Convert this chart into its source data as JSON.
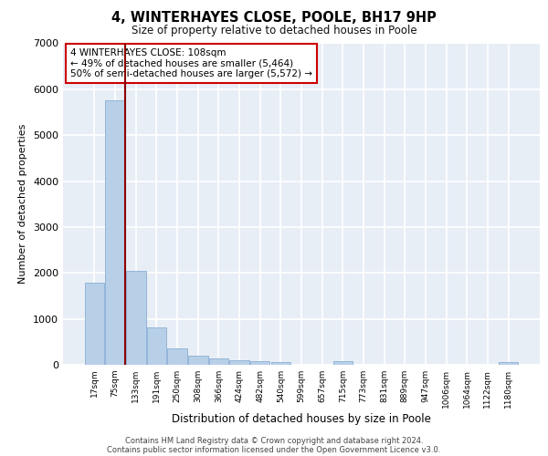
{
  "title1": "4, WINTERHAYES CLOSE, POOLE, BH17 9HP",
  "title2": "Size of property relative to detached houses in Poole",
  "xlabel": "Distribution of detached houses by size in Poole",
  "ylabel": "Number of detached properties",
  "categories": [
    "17sqm",
    "75sqm",
    "133sqm",
    "191sqm",
    "250sqm",
    "308sqm",
    "366sqm",
    "424sqm",
    "482sqm",
    "540sqm",
    "599sqm",
    "657sqm",
    "715sqm",
    "773sqm",
    "831sqm",
    "889sqm",
    "947sqm",
    "1006sqm",
    "1064sqm",
    "1122sqm",
    "1180sqm"
  ],
  "values": [
    1780,
    5750,
    2050,
    820,
    350,
    200,
    130,
    100,
    80,
    55,
    0,
    0,
    75,
    0,
    0,
    0,
    0,
    0,
    0,
    0,
    55
  ],
  "bar_color": "#b8cfe8",
  "bar_edge_color": "#8aafd4",
  "vline_x": 1.5,
  "vline_color": "#8b0000",
  "annotation_text": "4 WINTERHAYES CLOSE: 108sqm\n← 49% of detached houses are smaller (5,464)\n50% of semi-detached houses are larger (5,572) →",
  "annotation_box_color": "#cc0000",
  "ylim": [
    0,
    7000
  ],
  "yticks": [
    0,
    1000,
    2000,
    3000,
    4000,
    5000,
    6000,
    7000
  ],
  "background_color": "#e8eef6",
  "grid_color": "#ffffff",
  "footer_line1": "Contains HM Land Registry data © Crown copyright and database right 2024.",
  "footer_line2": "Contains public sector information licensed under the Open Government Licence v3.0."
}
